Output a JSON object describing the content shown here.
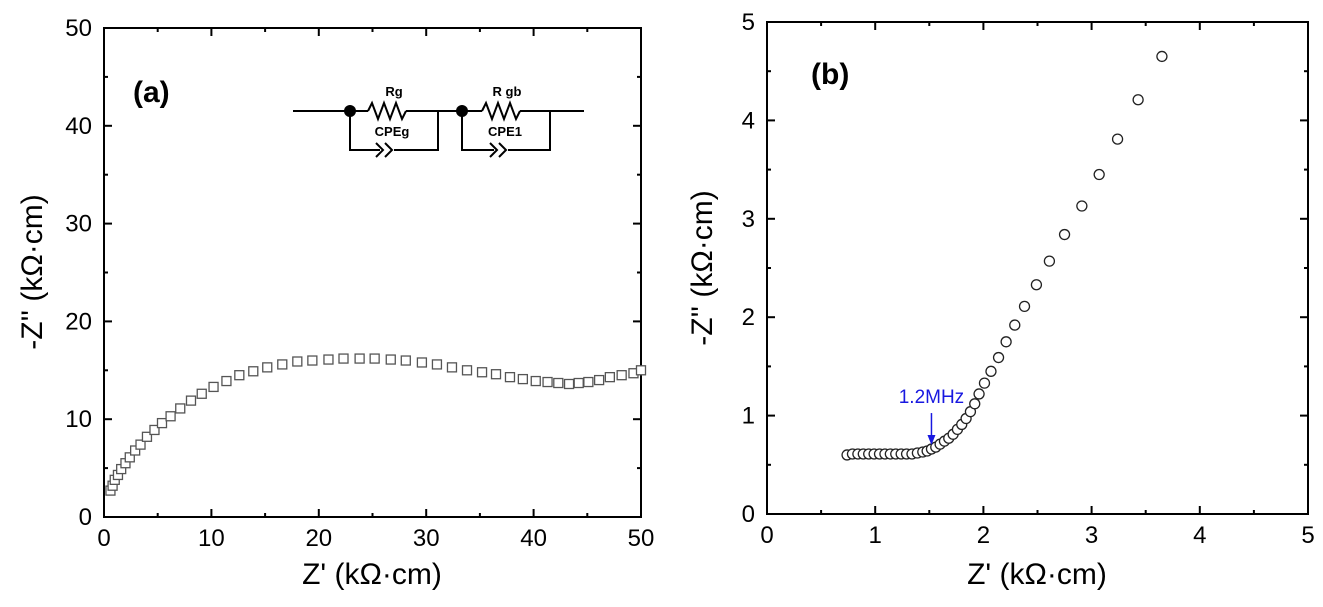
{
  "chart_data": [
    {
      "type": "scatter",
      "panel_label": "(a)",
      "xlabel": "Z' (kΩ·cm)",
      "ylabel": "-Z'' (kΩ·cm)",
      "xlim": [
        0,
        50
      ],
      "ylim": [
        0,
        50
      ],
      "xticks": [
        0,
        10,
        20,
        30,
        40,
        50
      ],
      "yticks": [
        0,
        10,
        20,
        30,
        40,
        50
      ],
      "marker": "open-square",
      "circuit": {
        "elements": [
          "Rg",
          "CPEg",
          "R gb",
          "CPE1"
        ]
      },
      "x": [
        0.6,
        0.8,
        1.0,
        1.3,
        1.6,
        2.0,
        2.4,
        2.9,
        3.4,
        4.0,
        4.7,
        5.4,
        6.2,
        7.1,
        8.1,
        9.1,
        10.2,
        11.4,
        12.6,
        13.9,
        15.2,
        16.6,
        18.0,
        19.4,
        20.9,
        22.3,
        23.8,
        25.2,
        26.7,
        28.1,
        29.6,
        31.0,
        32.4,
        33.8,
        35.2,
        36.5,
        37.8,
        39.0,
        40.2,
        41.3,
        42.3,
        43.3,
        44.2,
        45.1,
        46.1,
        47.1,
        48.2,
        49.3,
        50.0
      ],
      "y": [
        2.7,
        3.2,
        3.8,
        4.3,
        4.9,
        5.5,
        6.1,
        6.8,
        7.4,
        8.2,
        8.9,
        9.6,
        10.3,
        11.1,
        11.9,
        12.6,
        13.3,
        13.9,
        14.5,
        14.9,
        15.3,
        15.6,
        15.9,
        16.0,
        16.1,
        16.2,
        16.2,
        16.2,
        16.1,
        16.0,
        15.8,
        15.6,
        15.3,
        15.0,
        14.8,
        14.6,
        14.3,
        14.1,
        13.9,
        13.8,
        13.7,
        13.6,
        13.7,
        13.8,
        14.0,
        14.3,
        14.5,
        14.7,
        15.0
      ]
    },
    {
      "type": "scatter",
      "panel_label": "(b)",
      "xlabel": "Z' (kΩ·cm)",
      "ylabel": "-Z'' (kΩ·cm)",
      "xlim": [
        0,
        5
      ],
      "ylim": [
        0,
        5
      ],
      "xticks": [
        0,
        1,
        2,
        3,
        4,
        5
      ],
      "yticks": [
        0,
        1,
        2,
        3,
        4,
        5
      ],
      "marker": "open-circle",
      "annotation": {
        "text": "1.2MHz",
        "x": 1.52,
        "y": 0.66,
        "color": "#1818e0"
      },
      "x": [
        0.74,
        0.79,
        0.84,
        0.89,
        0.94,
        0.99,
        1.04,
        1.09,
        1.14,
        1.19,
        1.24,
        1.29,
        1.34,
        1.39,
        1.44,
        1.48,
        1.52,
        1.56,
        1.6,
        1.64,
        1.68,
        1.72,
        1.76,
        1.8,
        1.84,
        1.88,
        1.92,
        1.96,
        2.01,
        2.07,
        2.14,
        2.21,
        2.29,
        2.38,
        2.49,
        2.61,
        2.75,
        2.91,
        3.07,
        3.24,
        3.43,
        3.65
      ],
      "y": [
        0.6,
        0.61,
        0.61,
        0.61,
        0.61,
        0.61,
        0.61,
        0.61,
        0.61,
        0.61,
        0.61,
        0.61,
        0.61,
        0.62,
        0.63,
        0.64,
        0.66,
        0.68,
        0.71,
        0.74,
        0.77,
        0.81,
        0.86,
        0.91,
        0.97,
        1.04,
        1.12,
        1.22,
        1.33,
        1.45,
        1.59,
        1.75,
        1.92,
        2.11,
        2.33,
        2.57,
        2.84,
        3.13,
        3.45,
        3.81,
        4.21,
        4.65
      ]
    }
  ]
}
